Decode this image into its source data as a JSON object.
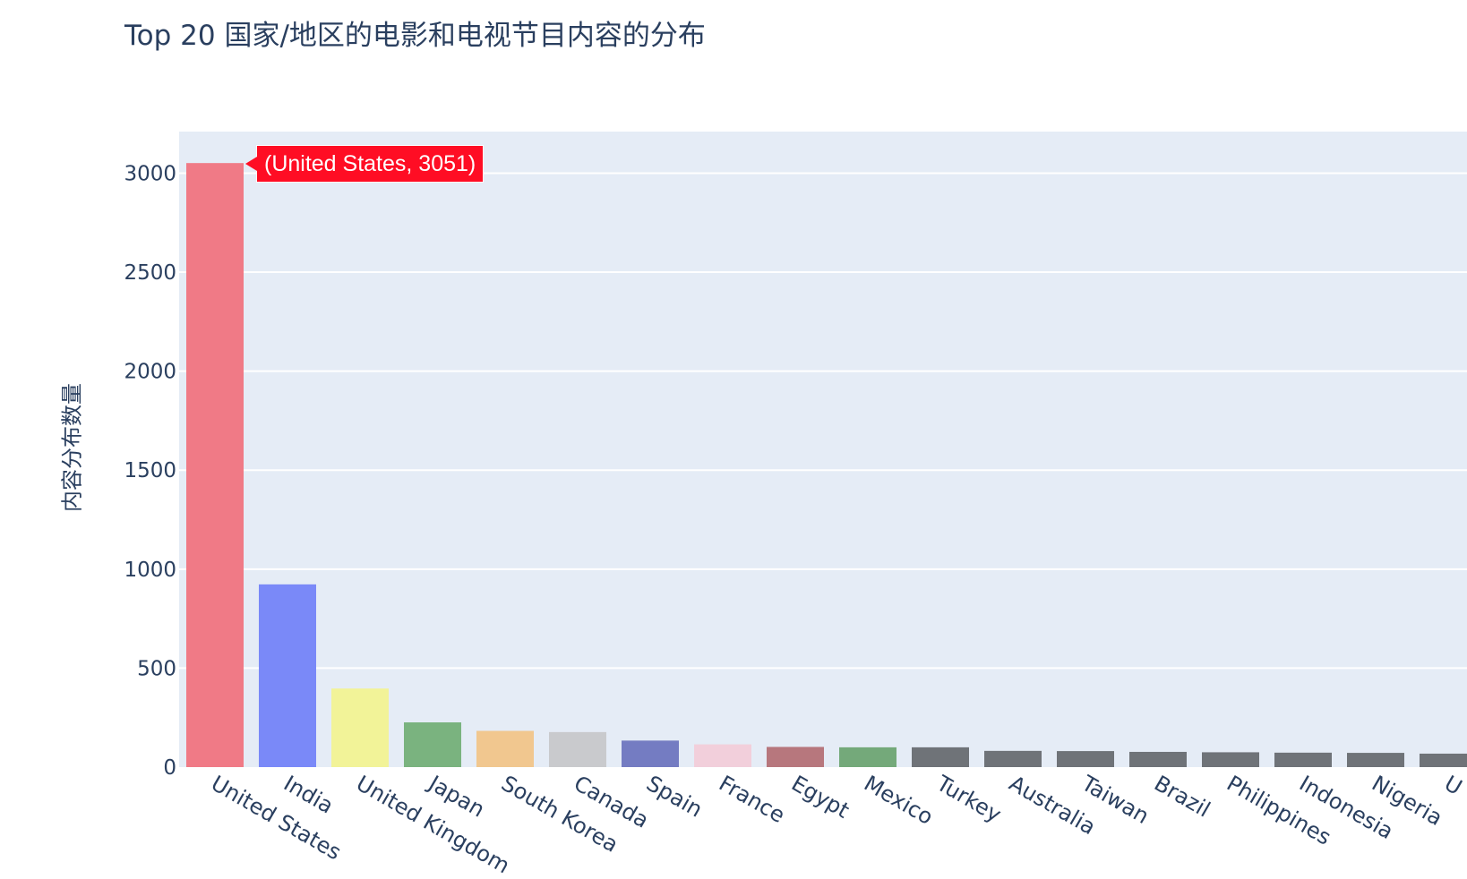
{
  "chart_data": {
    "type": "bar",
    "title": "Top 20 国家/地区的电影和电视节目内容的分布",
    "xlabel": "",
    "ylabel": "内容分布数量",
    "ylim": [
      0,
      3210
    ],
    "yticks": [
      0,
      500,
      1000,
      1500,
      2000,
      2500,
      3000
    ],
    "categories": [
      "United States",
      "India",
      "United Kingdom",
      "Japan",
      "South Korea",
      "Canada",
      "Spain",
      "France",
      "Egypt",
      "Mexico",
      "Turkey",
      "Australia",
      "Taiwan",
      "Brazil",
      "Philippines",
      "Indonesia",
      "Nigeria",
      "U"
    ],
    "values": [
      3051,
      923,
      397,
      226,
      183,
      177,
      134,
      115,
      102,
      100,
      100,
      82,
      81,
      77,
      75,
      73,
      72,
      68
    ],
    "colors": [
      "#f07a86",
      "#7a89f8",
      "#f2f398",
      "#7ab37f",
      "#f1c78f",
      "#c9cacd",
      "#747cc2",
      "#f2cfdb",
      "#b7777d",
      "#74a97a",
      "#6f7378",
      "#6f7378",
      "#6f7378",
      "#6f7378",
      "#6f7378",
      "#6f7378",
      "#6f7378",
      "#6f7378"
    ],
    "grid": true,
    "plot_bgcolor": "#e5ecf6",
    "tooltip": {
      "text": "(United States, 3051)",
      "color": "#ff0d24"
    }
  }
}
